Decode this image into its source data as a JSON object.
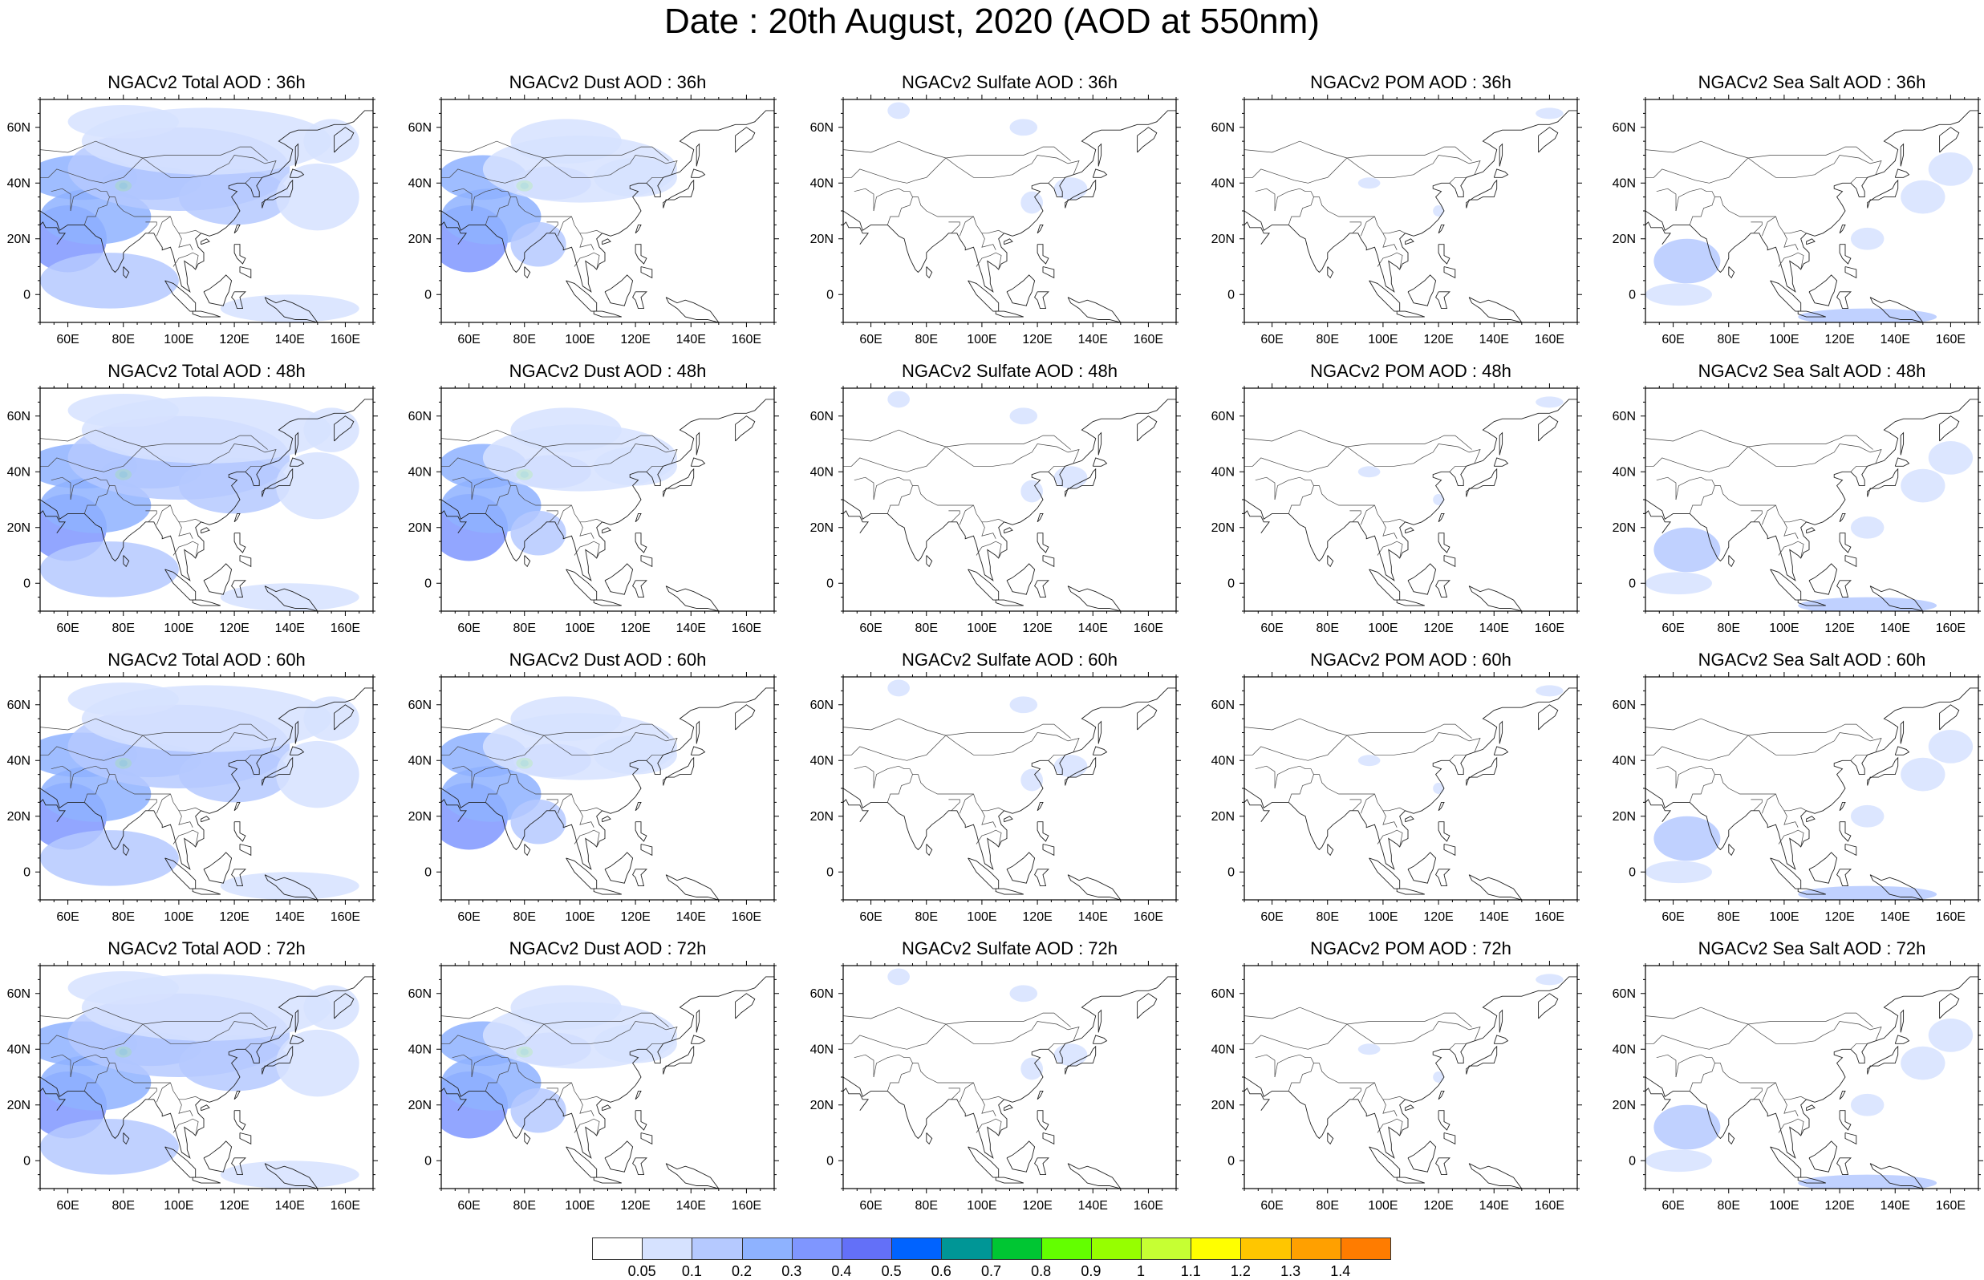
{
  "title": "Date : 20th August, 2020 (AOD at 550nm)",
  "lat_ticks": [
    "60N",
    "40N",
    "20N",
    "0"
  ],
  "lon_ticks": [
    "60E",
    "80E",
    "100E",
    "120E",
    "140E",
    "160E"
  ],
  "panels": [
    [
      {
        "title": "NGACv2 Total AOD : 36h",
        "species": "total",
        "hour": 36
      },
      {
        "title": "NGACv2 Dust AOD : 36h",
        "species": "dust",
        "hour": 36
      },
      {
        "title": "NGACv2 Sulfate AOD : 36h",
        "species": "sulfate",
        "hour": 36
      },
      {
        "title": "NGACv2 POM AOD : 36h",
        "species": "pom",
        "hour": 36
      },
      {
        "title": "NGACv2 Sea Salt AOD : 36h",
        "species": "seasalt",
        "hour": 36
      }
    ],
    [
      {
        "title": "NGACv2 Total AOD : 48h",
        "species": "total",
        "hour": 48
      },
      {
        "title": "NGACv2 Dust AOD : 48h",
        "species": "dust",
        "hour": 48
      },
      {
        "title": "NGACv2 Sulfate AOD : 48h",
        "species": "sulfate",
        "hour": 48
      },
      {
        "title": "NGACv2 POM AOD : 48h",
        "species": "pom",
        "hour": 48
      },
      {
        "title": "NGACv2 Sea Salt AOD : 48h",
        "species": "seasalt",
        "hour": 48
      }
    ],
    [
      {
        "title": "NGACv2 Total AOD : 60h",
        "species": "total",
        "hour": 60
      },
      {
        "title": "NGACv2 Dust AOD : 60h",
        "species": "dust",
        "hour": 60
      },
      {
        "title": "NGACv2 Sulfate AOD : 60h",
        "species": "sulfate",
        "hour": 60
      },
      {
        "title": "NGACv2 POM AOD : 60h",
        "species": "pom",
        "hour": 60
      },
      {
        "title": "NGACv2 Sea Salt AOD : 60h",
        "species": "seasalt",
        "hour": 60
      }
    ],
    [
      {
        "title": "NGACv2 Total AOD : 72h",
        "species": "total",
        "hour": 72
      },
      {
        "title": "NGACv2 Dust AOD : 72h",
        "species": "dust",
        "hour": 72
      },
      {
        "title": "NGACv2 Sulfate AOD : 72h",
        "species": "sulfate",
        "hour": 72
      },
      {
        "title": "NGACv2 POM AOD : 72h",
        "species": "pom",
        "hour": 72
      },
      {
        "title": "NGACv2 Sea Salt  AOD : 72h",
        "species": "seasalt",
        "hour": 72
      }
    ]
  ],
  "colorbar": {
    "labels": [
      "0.05",
      "0.1",
      "0.2",
      "0.3",
      "0.4",
      "0.5",
      "0.6",
      "0.7",
      "0.8",
      "0.9",
      "1",
      "1.1",
      "1.2",
      "1.3",
      "1.4"
    ],
    "colors": [
      "#ffffff",
      "#d6e2ff",
      "#b5c9ff",
      "#8eb2ff",
      "#7f96ff",
      "#6370f8",
      "#0063ff",
      "#009696",
      "#00c633",
      "#63ff00",
      "#96ff00",
      "#c6ff33",
      "#ffff00",
      "#ffc600",
      "#ffa000",
      "#ff7c00",
      "#ff1900"
    ]
  },
  "shading_colors": {
    "low": "#d6e2ff",
    "mid": "#b5c9ff",
    "high": "#8eb2ff",
    "higher": "#7f96ff",
    "peak": "#63ff00",
    "peak2": "#00c633"
  },
  "map_extent": {
    "lon": [
      50,
      170
    ],
    "lat": [
      -10,
      70
    ]
  }
}
